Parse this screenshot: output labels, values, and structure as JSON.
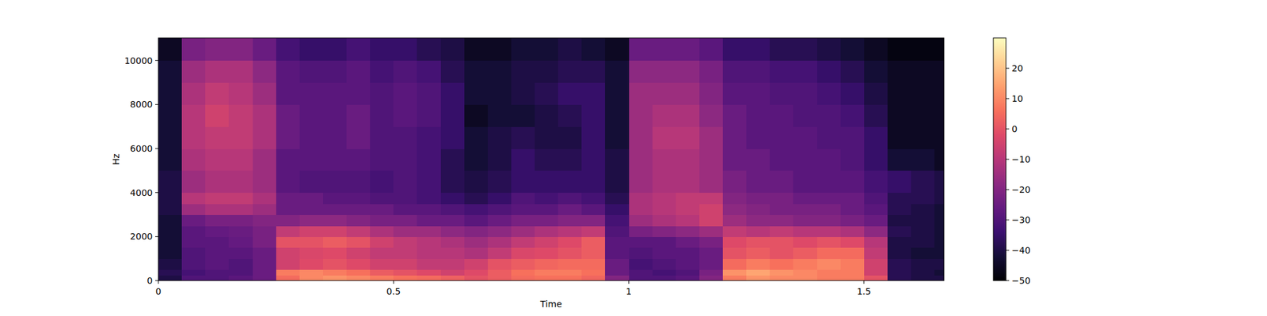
{
  "chart_data": {
    "type": "heatmap",
    "color": "magma",
    "x_label": "Time",
    "y_label": "Hz",
    "xlim": [
      0,
      1.67
    ],
    "xticks": [
      0,
      0.5,
      1,
      1.5
    ],
    "ylim": [
      0,
      11025
    ],
    "yticks": [
      0,
      2000,
      4000,
      6000,
      8000,
      10000
    ],
    "x_bins": [
      0,
      0.05,
      0.1,
      0.15,
      0.2,
      0.25,
      0.3,
      0.35,
      0.4,
      0.45,
      0.5,
      0.55,
      0.6,
      0.65,
      0.7,
      0.75,
      0.8,
      0.85,
      0.9,
      0.95,
      1.0,
      1.05,
      1.1,
      1.15,
      1.2,
      1.25,
      1.3,
      1.35,
      1.4,
      1.45,
      1.5,
      1.55,
      1.6,
      1.65,
      1.67
    ],
    "y_bins": [
      0,
      250,
      500,
      1000,
      1500,
      2000,
      2500,
      3000,
      3500,
      4000,
      5000,
      6000,
      7000,
      8000,
      9000,
      10000,
      11025
    ],
    "values": [
      [
        -40,
        -30,
        -30,
        -28,
        -25,
        5,
        10,
        12,
        10,
        8,
        6,
        5,
        3,
        0,
        2,
        5,
        6,
        6,
        4,
        -20,
        -30,
        -30,
        -28,
        -20,
        8,
        12,
        10,
        10,
        8,
        8,
        0,
        -38,
        -40,
        -40
      ],
      [
        -38,
        -32,
        -30,
        -30,
        -25,
        8,
        10,
        8,
        6,
        2,
        0,
        -2,
        -5,
        -2,
        2,
        6,
        8,
        8,
        6,
        -25,
        -30,
        -32,
        -30,
        -22,
        12,
        15,
        12,
        10,
        8,
        8,
        -5,
        -38,
        -40,
        -42
      ],
      [
        -40,
        -30,
        -28,
        -30,
        -25,
        -5,
        -2,
        0,
        -2,
        -5,
        -5,
        -8,
        -8,
        -5,
        0,
        2,
        4,
        5,
        5,
        -25,
        -32,
        -30,
        -28,
        -25,
        5,
        8,
        6,
        8,
        10,
        8,
        -5,
        -38,
        -40,
        -40
      ],
      [
        -42,
        -30,
        -28,
        -28,
        -25,
        -5,
        -3,
        -2,
        -5,
        -8,
        -8,
        -10,
        -10,
        -12,
        -8,
        -3,
        -2,
        0,
        2,
        -28,
        -30,
        -28,
        -28,
        -25,
        0,
        2,
        0,
        2,
        5,
        5,
        -8,
        -40,
        -42,
        -42
      ],
      [
        -42,
        -28,
        -28,
        -26,
        -22,
        0,
        0,
        2,
        0,
        -5,
        -8,
        -10,
        -12,
        -15,
        -12,
        -8,
        -5,
        -2,
        2,
        -28,
        -28,
        -28,
        -25,
        -22,
        -2,
        0,
        0,
        -2,
        0,
        -2,
        -10,
        -40,
        -40,
        -42
      ],
      [
        -42,
        -28,
        -26,
        -25,
        -22,
        -8,
        -5,
        -5,
        -8,
        -12,
        -15,
        -15,
        -18,
        -20,
        -18,
        -15,
        -12,
        -10,
        -8,
        -30,
        -22,
        -20,
        -18,
        -15,
        -8,
        -10,
        -8,
        -10,
        -10,
        -12,
        -18,
        -38,
        -40,
        -42
      ],
      [
        -42,
        -25,
        -22,
        -22,
        -20,
        -20,
        -18,
        -18,
        -20,
        -22,
        -22,
        -25,
        -25,
        -28,
        -25,
        -22,
        -22,
        -20,
        -20,
        -32,
        -15,
        -12,
        -10,
        -5,
        -15,
        -18,
        -18,
        -20,
        -20,
        -22,
        -25,
        -40,
        -40,
        -42
      ],
      [
        -40,
        -15,
        -12,
        -12,
        -15,
        -25,
        -25,
        -25,
        -25,
        -25,
        -28,
        -28,
        -30,
        -32,
        -30,
        -28,
        -28,
        -25,
        -28,
        -35,
        -12,
        -10,
        -8,
        -5,
        -18,
        -20,
        -22,
        -22,
        -22,
        -25,
        -28,
        -38,
        -40,
        -42
      ],
      [
        -40,
        -10,
        -8,
        -8,
        -12,
        -25,
        -25,
        -28,
        -28,
        -30,
        -30,
        -32,
        -35,
        -38,
        -35,
        -30,
        -32,
        -30,
        -32,
        -38,
        -12,
        -10,
        -8,
        -8,
        -20,
        -22,
        -22,
        -25,
        -25,
        -25,
        -30,
        -38,
        -38,
        -40
      ],
      [
        -40,
        -15,
        -12,
        -12,
        -15,
        -28,
        -30,
        -30,
        -30,
        -32,
        -30,
        -32,
        -38,
        -40,
        -38,
        -35,
        -35,
        -35,
        -35,
        -40,
        -15,
        -12,
        -12,
        -15,
        -22,
        -25,
        -25,
        -28,
        -28,
        -28,
        -32,
        -35,
        -38,
        -40
      ],
      [
        -42,
        -12,
        -10,
        -10,
        -15,
        -28,
        -28,
        -28,
        -28,
        -30,
        -30,
        -32,
        -38,
        -42,
        -40,
        -35,
        -38,
        -38,
        -35,
        -40,
        -15,
        -12,
        -12,
        -15,
        -25,
        -25,
        -28,
        -28,
        -28,
        -30,
        -35,
        -42,
        -42,
        -45
      ],
      [
        -42,
        -10,
        -8,
        -8,
        -12,
        -25,
        -28,
        -28,
        -25,
        -30,
        -30,
        -32,
        -35,
        -42,
        -40,
        -38,
        -40,
        -40,
        -35,
        -42,
        -15,
        -10,
        -10,
        -15,
        -25,
        -28,
        -28,
        -28,
        -30,
        -30,
        -35,
        -45,
        -45,
        -45
      ],
      [
        -42,
        -10,
        -5,
        -8,
        -12,
        -25,
        -28,
        -28,
        -25,
        -30,
        -28,
        -30,
        -35,
        -45,
        -42,
        -42,
        -40,
        -38,
        -35,
        -42,
        -15,
        -12,
        -12,
        -18,
        -25,
        -28,
        -28,
        -30,
        -30,
        -32,
        -38,
        -45,
        -45,
        -45
      ],
      [
        -42,
        -12,
        -8,
        -10,
        -15,
        -28,
        -28,
        -28,
        -28,
        -30,
        -28,
        -30,
        -35,
        -42,
        -42,
        -40,
        -38,
        -35,
        -35,
        -42,
        -15,
        -15,
        -15,
        -20,
        -28,
        -28,
        -30,
        -30,
        -32,
        -35,
        -40,
        -45,
        -45,
        -45
      ],
      [
        -42,
        -15,
        -12,
        -12,
        -18,
        -28,
        -30,
        -30,
        -28,
        -32,
        -30,
        -32,
        -38,
        -42,
        -42,
        -40,
        -40,
        -38,
        -38,
        -42,
        -18,
        -18,
        -18,
        -22,
        -30,
        -30,
        -32,
        -32,
        -35,
        -38,
        -42,
        -45,
        -45,
        -45
      ],
      [
        -45,
        -22,
        -20,
        -20,
        -25,
        -32,
        -35,
        -35,
        -32,
        -35,
        -35,
        -38,
        -40,
        -45,
        -45,
        -42,
        -42,
        -40,
        -42,
        -45,
        -25,
        -25,
        -25,
        -28,
        -35,
        -35,
        -38,
        -38,
        -40,
        -42,
        -45,
        -48,
        -48,
        -48
      ]
    ],
    "colorbar": {
      "range": [
        -50,
        30
      ],
      "ticks": [
        {
          "value": -50,
          "label": "−50"
        },
        {
          "value": -40,
          "label": "−40"
        },
        {
          "value": -30,
          "label": "−30"
        },
        {
          "value": -20,
          "label": "−20"
        },
        {
          "value": -10,
          "label": "−10"
        },
        0,
        10,
        20
      ]
    }
  }
}
